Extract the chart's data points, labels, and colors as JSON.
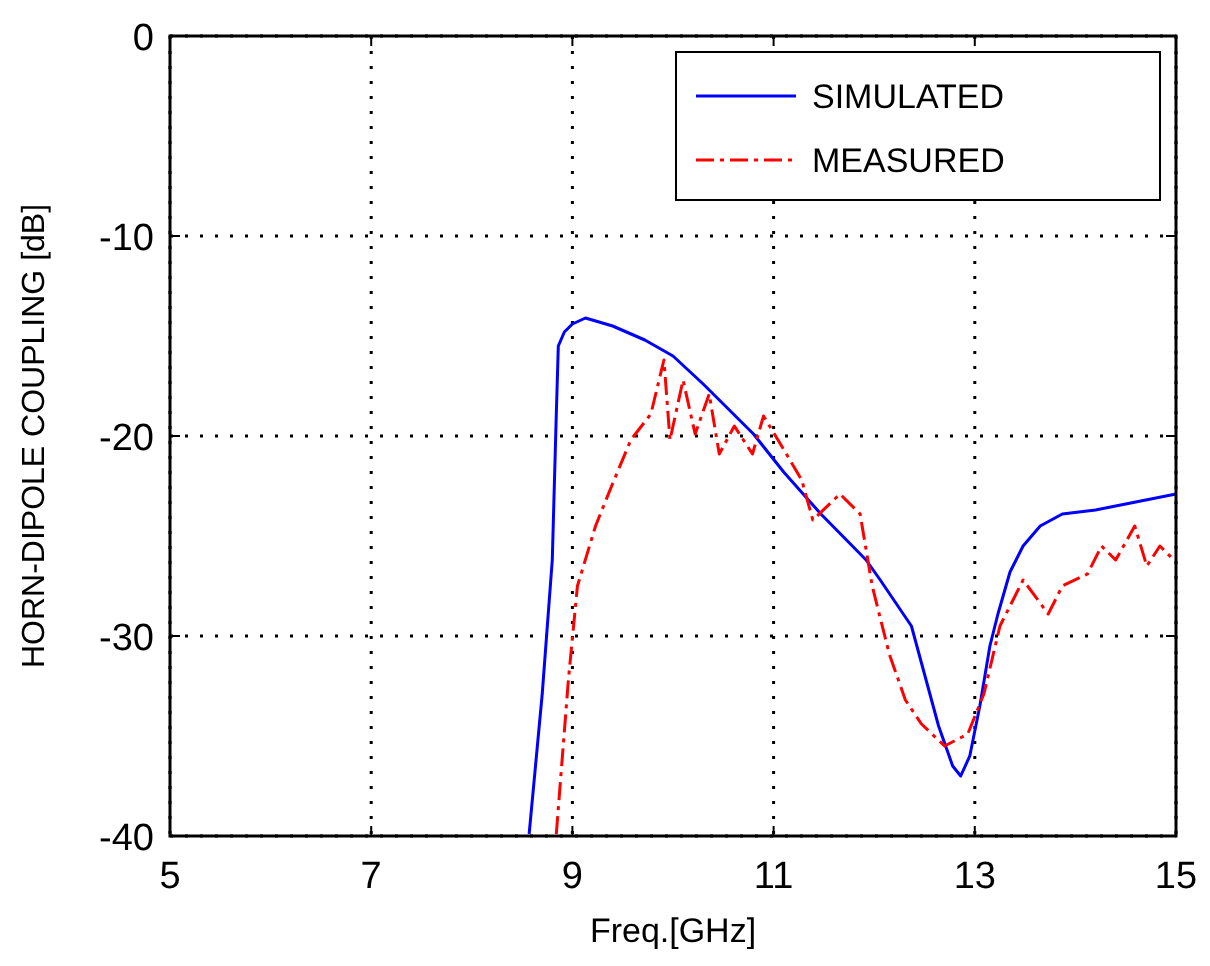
{
  "chart_data": {
    "type": "line",
    "xlabel": "Freq.[GHz]",
    "ylabel": "HORN-DIPOLE COUPLING [dB]",
    "xlim": [
      5,
      15
    ],
    "ylim": [
      -40,
      0
    ],
    "xticks": [
      5,
      7,
      9,
      11,
      13,
      15
    ],
    "yticks": [
      -40,
      -30,
      -20,
      -10,
      0
    ],
    "grid": true,
    "legend": "top right",
    "series": [
      {
        "name": "SIMULATED",
        "color": "#0000ff",
        "line_style": "solid",
        "x": [
          8.57,
          8.7,
          8.8,
          8.84,
          8.86,
          8.92,
          9.0,
          9.13,
          9.4,
          9.72,
          10.0,
          10.3,
          10.8,
          11.1,
          11.47,
          11.92,
          12.06,
          12.37,
          12.64,
          12.78,
          12.86,
          12.95,
          13.05,
          13.15,
          13.23,
          13.35,
          13.48,
          13.65,
          13.87,
          14.2,
          14.6,
          15.0
        ],
        "values": [
          -39.9,
          -32.9,
          -26.2,
          -18.9,
          -15.5,
          -14.8,
          -14.4,
          -14.1,
          -14.5,
          -15.2,
          -16.0,
          -17.4,
          -19.9,
          -21.8,
          -23.9,
          -26.2,
          -27.2,
          -29.5,
          -34.5,
          -36.5,
          -37.0,
          -36.0,
          -33.5,
          -30.5,
          -28.9,
          -26.8,
          -25.5,
          -24.5,
          -23.9,
          -23.7,
          -23.3,
          -22.9
        ]
      },
      {
        "name": "MEASURED",
        "color": "#ff0000",
        "line_style": "dashed",
        "x": [
          8.84,
          8.96,
          9.05,
          9.23,
          9.39,
          9.58,
          9.78,
          9.91,
          9.97,
          10.1,
          10.22,
          10.36,
          10.46,
          10.61,
          10.79,
          10.9,
          11.08,
          11.28,
          11.39,
          11.66,
          11.86,
          11.98,
          12.15,
          12.31,
          12.47,
          12.7,
          12.93,
          13.09,
          13.25,
          13.48,
          13.73,
          13.87,
          14.12,
          14.26,
          14.4,
          14.59,
          14.71,
          14.84,
          14.98
        ],
        "values": [
          -39.9,
          -32.2,
          -27.5,
          -24.5,
          -22.5,
          -20.2,
          -18.9,
          -16.2,
          -20.2,
          -17.2,
          -19.9,
          -17.9,
          -20.9,
          -19.5,
          -20.9,
          -19.0,
          -20.5,
          -22.2,
          -24.2,
          -22.9,
          -23.9,
          -27.5,
          -30.9,
          -33.2,
          -34.4,
          -35.5,
          -34.9,
          -32.9,
          -29.5,
          -27.2,
          -28.9,
          -27.5,
          -26.9,
          -25.5,
          -26.2,
          -24.5,
          -26.5,
          -25.5,
          -26.2
        ]
      }
    ]
  }
}
